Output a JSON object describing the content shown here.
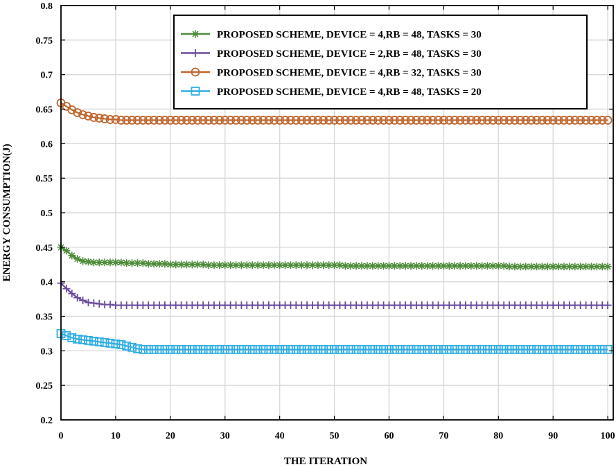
{
  "chart_data": {
    "type": "line",
    "title": "",
    "xlabel": "THE ITERATION",
    "ylabel": "ENERGY CONSUMPTION(J)",
    "xlim": [
      0,
      101
    ],
    "ylim": [
      0.2,
      0.8
    ],
    "xticks": [
      "0",
      "10",
      "20",
      "30",
      "40",
      "50",
      "60",
      "70",
      "80",
      "90",
      "100"
    ],
    "yticks": [
      "0.2",
      "0.25",
      "0.3",
      "0.35",
      "0.4",
      "0.45",
      "0.5",
      "0.55",
      "0.6",
      "0.65",
      "0.7",
      "0.75",
      "0.8"
    ],
    "grid": true,
    "legend_position": "top-right",
    "x": [
      0,
      1,
      2,
      3,
      4,
      5,
      6,
      7,
      8,
      9,
      10,
      11,
      12,
      13,
      14,
      15,
      16,
      17,
      18,
      19,
      20,
      21,
      22,
      23,
      24,
      25,
      26,
      27,
      28,
      29,
      30,
      31,
      32,
      33,
      34,
      35,
      36,
      37,
      38,
      39,
      40,
      41,
      42,
      43,
      44,
      45,
      46,
      47,
      48,
      49,
      50,
      51,
      52,
      53,
      54,
      55,
      56,
      57,
      58,
      59,
      60,
      61,
      62,
      63,
      64,
      65,
      66,
      67,
      68,
      69,
      70,
      71,
      72,
      73,
      74,
      75,
      76,
      77,
      78,
      79,
      80,
      81,
      82,
      83,
      84,
      85,
      86,
      87,
      88,
      89,
      90,
      91,
      92,
      93,
      94,
      95,
      96,
      97,
      98,
      99,
      100
    ],
    "series": [
      {
        "name": "PROPOSED SCHEME, DEVICE = 4,RB = 48, TASKS = 30",
        "color": "#4e8b3a",
        "marker": "star",
        "values": [
          0.45,
          0.445,
          0.438,
          0.433,
          0.43,
          0.429,
          0.428,
          0.428,
          0.428,
          0.428,
          0.428,
          0.428,
          0.427,
          0.427,
          0.427,
          0.427,
          0.426,
          0.426,
          0.426,
          0.426,
          0.425,
          0.425,
          0.425,
          0.425,
          0.425,
          0.425,
          0.425,
          0.424,
          0.424,
          0.424,
          0.424,
          0.424,
          0.424,
          0.424,
          0.424,
          0.424,
          0.424,
          0.424,
          0.424,
          0.424,
          0.424,
          0.424,
          0.424,
          0.424,
          0.424,
          0.424,
          0.424,
          0.424,
          0.424,
          0.424,
          0.424,
          0.424,
          0.423,
          0.423,
          0.423,
          0.423,
          0.423,
          0.423,
          0.423,
          0.423,
          0.423,
          0.423,
          0.423,
          0.423,
          0.423,
          0.423,
          0.423,
          0.423,
          0.423,
          0.423,
          0.423,
          0.423,
          0.423,
          0.423,
          0.423,
          0.423,
          0.423,
          0.423,
          0.423,
          0.423,
          0.423,
          0.423,
          0.422,
          0.422,
          0.422,
          0.422,
          0.422,
          0.422,
          0.422,
          0.422,
          0.422,
          0.422,
          0.422,
          0.422,
          0.422,
          0.422,
          0.422,
          0.422,
          0.422,
          0.422,
          0.422
        ]
      },
      {
        "name": "PROPOSED SCHEME, DEVICE = 2,RB = 48, TASKS = 30",
        "color": "#6a4b9c",
        "marker": "plus",
        "values": [
          0.398,
          0.39,
          0.383,
          0.377,
          0.373,
          0.37,
          0.369,
          0.368,
          0.367,
          0.367,
          0.366,
          0.366,
          0.366,
          0.366,
          0.366,
          0.366,
          0.366,
          0.366,
          0.366,
          0.366,
          0.366,
          0.366,
          0.366,
          0.366,
          0.366,
          0.366,
          0.366,
          0.366,
          0.366,
          0.366,
          0.366,
          0.366,
          0.366,
          0.366,
          0.366,
          0.366,
          0.366,
          0.366,
          0.366,
          0.366,
          0.366,
          0.366,
          0.366,
          0.366,
          0.366,
          0.366,
          0.366,
          0.366,
          0.366,
          0.366,
          0.366,
          0.366,
          0.366,
          0.366,
          0.366,
          0.366,
          0.366,
          0.366,
          0.366,
          0.366,
          0.366,
          0.366,
          0.366,
          0.366,
          0.366,
          0.366,
          0.366,
          0.366,
          0.366,
          0.366,
          0.366,
          0.366,
          0.366,
          0.366,
          0.366,
          0.366,
          0.366,
          0.366,
          0.366,
          0.366,
          0.366,
          0.366,
          0.366,
          0.366,
          0.366,
          0.366,
          0.366,
          0.366,
          0.366,
          0.366,
          0.366,
          0.366,
          0.366,
          0.366,
          0.366,
          0.366,
          0.366,
          0.366,
          0.366,
          0.366,
          0.366
        ]
      },
      {
        "name": "PROPOSED SCHEME, DEVICE = 4,RB = 32, TASKS = 30",
        "color": "#c0662d",
        "marker": "circle",
        "values": [
          0.659,
          0.654,
          0.649,
          0.645,
          0.642,
          0.64,
          0.638,
          0.637,
          0.636,
          0.635,
          0.635,
          0.634,
          0.634,
          0.634,
          0.634,
          0.634,
          0.634,
          0.634,
          0.634,
          0.634,
          0.634,
          0.634,
          0.634,
          0.634,
          0.634,
          0.634,
          0.634,
          0.634,
          0.634,
          0.634,
          0.634,
          0.634,
          0.634,
          0.634,
          0.634,
          0.634,
          0.634,
          0.634,
          0.634,
          0.634,
          0.634,
          0.634,
          0.634,
          0.634,
          0.634,
          0.634,
          0.634,
          0.634,
          0.634,
          0.634,
          0.634,
          0.634,
          0.634,
          0.634,
          0.634,
          0.634,
          0.634,
          0.634,
          0.634,
          0.634,
          0.634,
          0.634,
          0.634,
          0.634,
          0.634,
          0.634,
          0.634,
          0.634,
          0.634,
          0.634,
          0.634,
          0.634,
          0.634,
          0.634,
          0.634,
          0.634,
          0.634,
          0.634,
          0.634,
          0.634,
          0.634,
          0.634,
          0.634,
          0.634,
          0.634,
          0.634,
          0.634,
          0.634,
          0.634,
          0.634,
          0.634,
          0.634,
          0.634,
          0.634,
          0.634,
          0.634,
          0.634,
          0.634,
          0.634,
          0.634,
          0.634
        ]
      },
      {
        "name": "PROPOSED SCHEME, DEVICE = 4,RB = 48, TASKS = 20",
        "color": "#2faee3",
        "marker": "square",
        "values": [
          0.325,
          0.322,
          0.319,
          0.317,
          0.316,
          0.315,
          0.314,
          0.313,
          0.312,
          0.311,
          0.31,
          0.309,
          0.307,
          0.305,
          0.303,
          0.302,
          0.302,
          0.302,
          0.302,
          0.302,
          0.302,
          0.302,
          0.302,
          0.302,
          0.302,
          0.302,
          0.302,
          0.302,
          0.302,
          0.302,
          0.302,
          0.302,
          0.302,
          0.302,
          0.302,
          0.302,
          0.302,
          0.302,
          0.302,
          0.302,
          0.302,
          0.302,
          0.302,
          0.302,
          0.302,
          0.302,
          0.302,
          0.302,
          0.302,
          0.302,
          0.302,
          0.302,
          0.302,
          0.302,
          0.302,
          0.302,
          0.302,
          0.302,
          0.302,
          0.302,
          0.302,
          0.302,
          0.302,
          0.302,
          0.302,
          0.302,
          0.302,
          0.302,
          0.302,
          0.302,
          0.302,
          0.302,
          0.302,
          0.302,
          0.302,
          0.302,
          0.302,
          0.302,
          0.302,
          0.302,
          0.302,
          0.302,
          0.302,
          0.302,
          0.302,
          0.302,
          0.302,
          0.302,
          0.302,
          0.302,
          0.302,
          0.302,
          0.302,
          0.302,
          0.302,
          0.302,
          0.302,
          0.302,
          0.302,
          0.302,
          0.302
        ]
      }
    ]
  }
}
